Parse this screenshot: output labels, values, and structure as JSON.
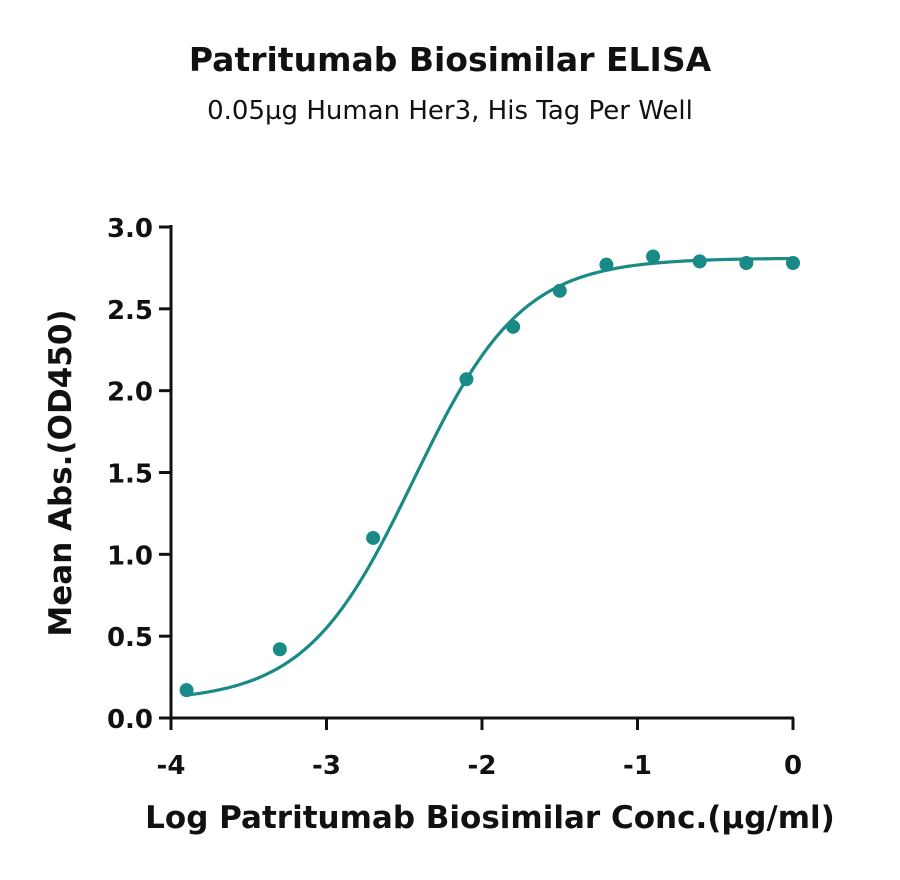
{
  "chart_data": {
    "type": "scatter",
    "title": "Patritumab Biosimilar ELISA",
    "subtitle": "0.05µg Human Her3, His Tag Per Well",
    "xlabel": "Log Patritumab Biosimilar Conc.(µg/ml)",
    "ylabel": "Mean Abs.(OD450)",
    "xlim": [
      -4,
      0
    ],
    "ylim": [
      0,
      3
    ],
    "x_ticks": [
      "-4",
      "-3",
      "-2",
      "-1",
      "0"
    ],
    "y_ticks": [
      "0.0",
      "0.5",
      "1.0",
      "1.5",
      "2.0",
      "2.5",
      "3.0"
    ],
    "series": [
      {
        "x": [
          -3.9,
          -3.3,
          -2.7,
          -2.1,
          -1.8,
          -1.5,
          -1.2,
          -0.9,
          -0.6,
          -0.3,
          0.0
        ],
        "y": [
          0.17,
          0.42,
          1.1,
          2.07,
          2.39,
          2.61,
          2.77,
          2.82,
          2.79,
          2.78,
          2.78
        ]
      }
    ],
    "fit_curve": true,
    "grid": false,
    "color": "#1a8a86"
  }
}
